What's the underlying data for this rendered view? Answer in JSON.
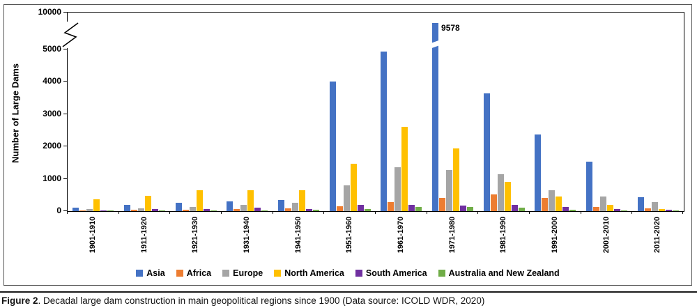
{
  "figure": {
    "caption": {
      "label": "Figure 2",
      "text": ". Decadal large dam construction in main geopolitical regions since 1900 (Data source: ICOLD WDR, 2020)"
    }
  },
  "chart_data": {
    "type": "bar",
    "title": "",
    "xlabel": "",
    "ylabel": "Number of Large Dams",
    "legend_position": "bottom",
    "grid": false,
    "y_axis": {
      "ticks": [
        0,
        1000,
        2000,
        3000,
        4000,
        5000,
        10000
      ],
      "linear_max": 5000,
      "break_between": [
        5000,
        10000
      ]
    },
    "annotation": {
      "text": "9578",
      "series": "Asia",
      "category": "1971-1980"
    },
    "categories": [
      "1901-1910",
      "1911-1920",
      "1921-1930",
      "1931-1940",
      "1941-1950",
      "1951-1960",
      "1961-1970",
      "1971-1980",
      "1981-1990",
      "1991-2000",
      "2001-2010",
      "2011-2020"
    ],
    "series": [
      {
        "name": "Asia",
        "color": "#4472C4",
        "values": [
          100,
          200,
          250,
          300,
          350,
          4000,
          4930,
          9578,
          3650,
          2380,
          1520,
          430
        ]
      },
      {
        "name": "Africa",
        "color": "#ED7D31",
        "values": [
          25,
          35,
          45,
          55,
          80,
          150,
          280,
          400,
          520,
          400,
          130,
          80
        ]
      },
      {
        "name": "Europe",
        "color": "#A5A5A5",
        "values": [
          60,
          80,
          120,
          200,
          250,
          800,
          1350,
          1270,
          1150,
          650,
          450,
          270
        ]
      },
      {
        "name": "North America",
        "color": "#FFC000",
        "values": [
          360,
          480,
          650,
          650,
          640,
          1470,
          2600,
          1950,
          900,
          450,
          190,
          60
        ]
      },
      {
        "name": "South America",
        "color": "#7030A0",
        "values": [
          20,
          60,
          60,
          110,
          60,
          190,
          200,
          180,
          200,
          130,
          70,
          50
        ]
      },
      {
        "name": "Australia and New Zealand",
        "color": "#70AD47",
        "values": [
          10,
          20,
          30,
          30,
          40,
          70,
          120,
          130,
          100,
          40,
          20,
          10
        ]
      }
    ]
  }
}
